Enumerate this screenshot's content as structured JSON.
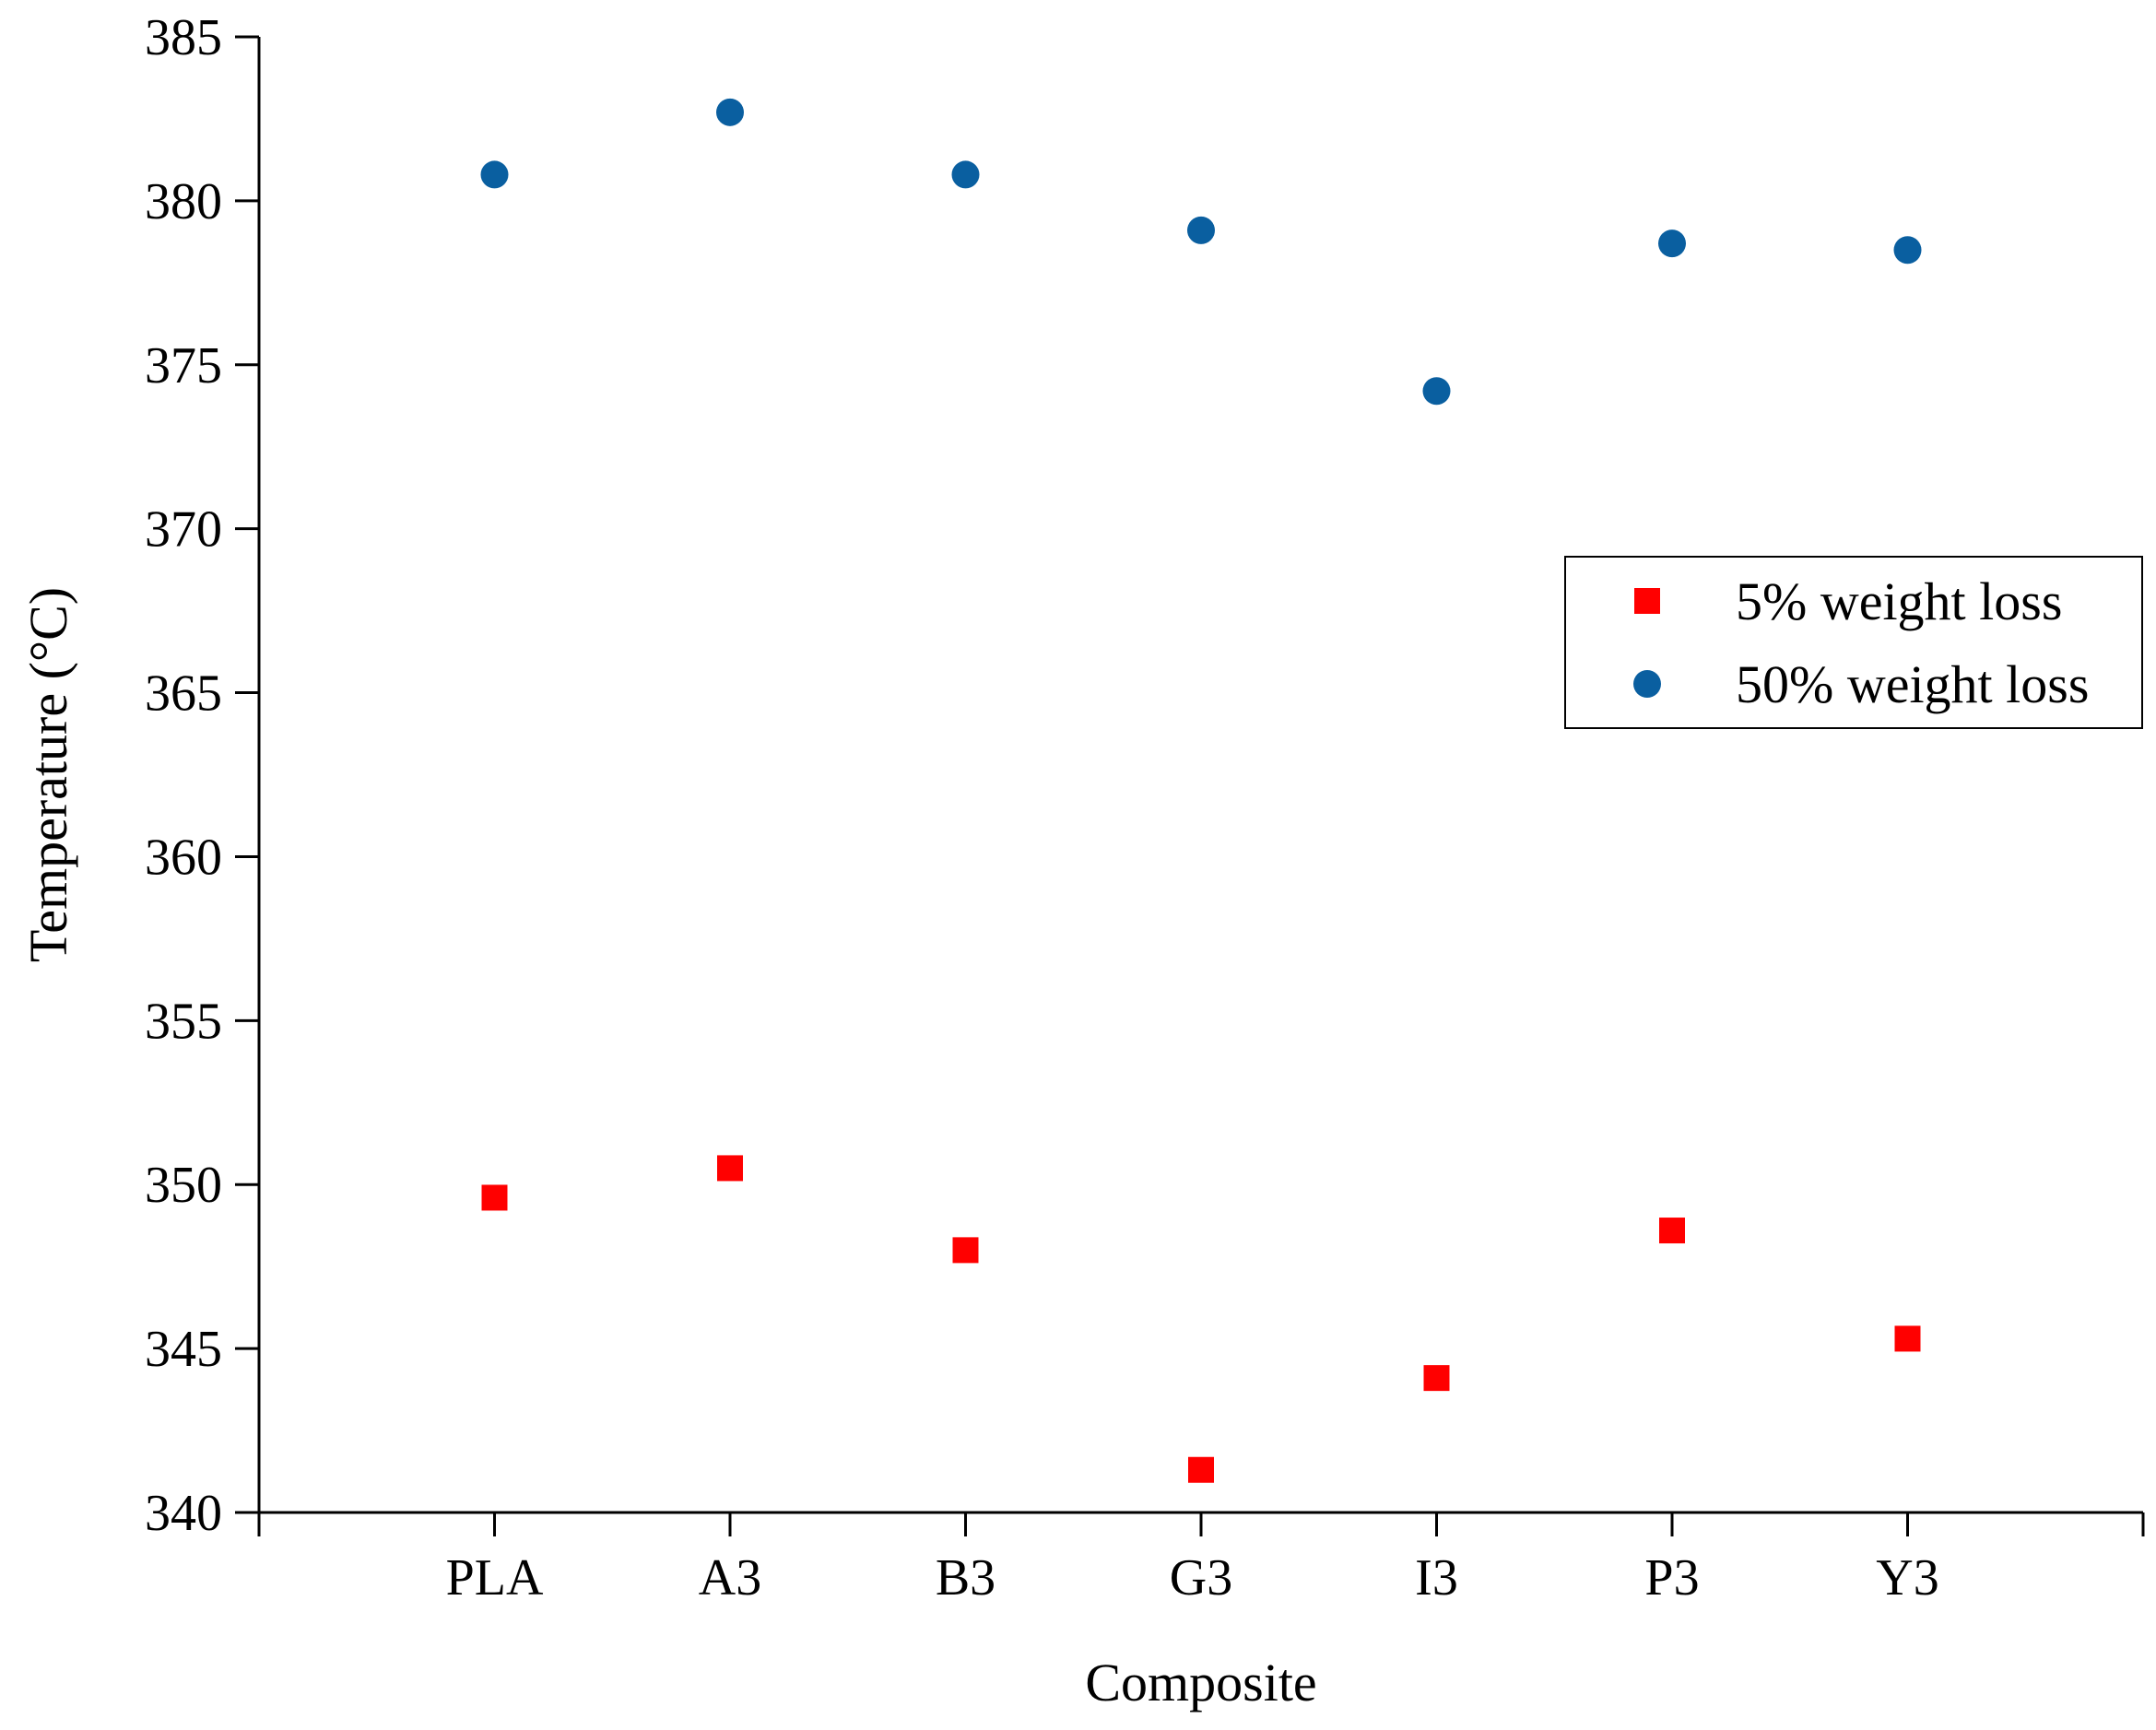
{
  "chart_data": {
    "type": "scatter",
    "title": "",
    "xlabel": "Composite",
    "ylabel": "Temperature (°C)",
    "categories": [
      "PLA",
      "A3",
      "B3",
      "G3",
      "I3",
      "P3",
      "Y3"
    ],
    "ylim": [
      340,
      385
    ],
    "yticks": [
      340,
      345,
      350,
      355,
      360,
      365,
      370,
      375,
      380,
      385
    ],
    "ytick_labels": [
      "340",
      "345",
      "350",
      "355",
      "360",
      "365",
      "370",
      "375",
      "380",
      "385"
    ],
    "grid": false,
    "legend_position": "right",
    "series": [
      {
        "name": "5% weight loss",
        "marker": "square",
        "color": "#ff0000",
        "values": [
          349.6,
          350.5,
          348.0,
          341.3,
          344.1,
          348.6,
          345.3
        ]
      },
      {
        "name": "50% weight loss",
        "marker": "circle",
        "color": "#0a5fa0",
        "values": [
          380.8,
          382.7,
          380.8,
          379.1,
          374.2,
          378.7,
          378.5
        ]
      }
    ]
  }
}
